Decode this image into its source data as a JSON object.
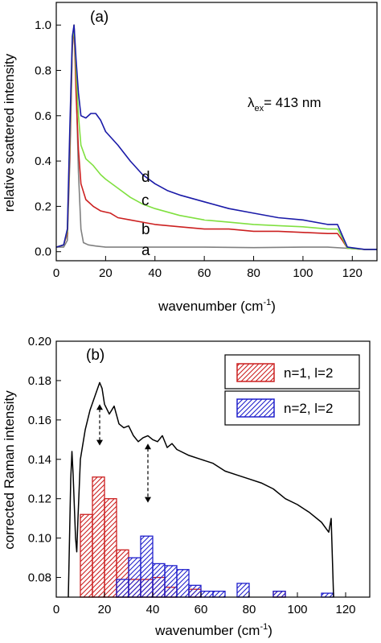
{
  "chart_data": [
    {
      "type": "line",
      "panel_label": "(a)",
      "annotation_main": "λ",
      "annotation_sub": "ex",
      "annotation_rest": "= 413 nm",
      "xlabel_main": "wavenumber (cm",
      "xlabel_sup": "-1",
      "xlabel_end": ")",
      "ylabel": "relative scattered intensity",
      "xlim": [
        0,
        130
      ],
      "ylim": [
        -0.04,
        1.1
      ],
      "xticks": [
        0,
        20,
        40,
        60,
        80,
        100,
        120
      ],
      "yticks": [
        0.0,
        0.2,
        0.4,
        0.6,
        0.8,
        1.0
      ],
      "ytick_labels": [
        "0.0",
        "0.2",
        "0.4",
        "0.6",
        "0.8",
        "1.0"
      ],
      "series": [
        {
          "name": "a",
          "color": "#808080",
          "points": [
            [
              0,
              0.02
            ],
            [
              3,
              0.02
            ],
            [
              4.5,
              0.05
            ],
            [
              5.5,
              0.4
            ],
            [
              6.5,
              0.9
            ],
            [
              7.2,
              1.0
            ],
            [
              8,
              0.75
            ],
            [
              9,
              0.35
            ],
            [
              10,
              0.1
            ],
            [
              11,
              0.04
            ],
            [
              13,
              0.03
            ],
            [
              16,
              0.025
            ],
            [
              20,
              0.02
            ],
            [
              30,
              0.02
            ],
            [
              40,
              0.02
            ],
            [
              60,
              0.02
            ],
            [
              80,
              0.018
            ],
            [
              100,
              0.02
            ],
            [
              110,
              0.02
            ],
            [
              118,
              0.015
            ],
            [
              125,
              0.01
            ],
            [
              130,
              0.01
            ]
          ]
        },
        {
          "name": "b",
          "color": "#cc2020",
          "points": [
            [
              0,
              0.02
            ],
            [
              3,
              0.03
            ],
            [
              4.5,
              0.08
            ],
            [
              5.5,
              0.45
            ],
            [
              6.5,
              0.9
            ],
            [
              7.2,
              1.0
            ],
            [
              8,
              0.7
            ],
            [
              9,
              0.45
            ],
            [
              10,
              0.3
            ],
            [
              12,
              0.23
            ],
            [
              15,
              0.2
            ],
            [
              18,
              0.18
            ],
            [
              22,
              0.17
            ],
            [
              25,
              0.15
            ],
            [
              30,
              0.14
            ],
            [
              35,
              0.13
            ],
            [
              40,
              0.12
            ],
            [
              50,
              0.11
            ],
            [
              60,
              0.1
            ],
            [
              70,
              0.1
            ],
            [
              80,
              0.09
            ],
            [
              90,
              0.09
            ],
            [
              100,
              0.085
            ],
            [
              110,
              0.08
            ],
            [
              114,
              0.08
            ],
            [
              116,
              0.05
            ],
            [
              118,
              0.015
            ],
            [
              125,
              0.01
            ],
            [
              130,
              0.01
            ]
          ]
        },
        {
          "name": "c",
          "color": "#80e040",
          "points": [
            [
              0,
              0.02
            ],
            [
              3,
              0.03
            ],
            [
              4.5,
              0.09
            ],
            [
              5.5,
              0.5
            ],
            [
              6.5,
              0.92
            ],
            [
              7.2,
              1.0
            ],
            [
              8,
              0.8
            ],
            [
              9,
              0.6
            ],
            [
              10,
              0.47
            ],
            [
              12,
              0.41
            ],
            [
              15,
              0.38
            ],
            [
              18,
              0.34
            ],
            [
              20,
              0.32
            ],
            [
              25,
              0.28
            ],
            [
              30,
              0.24
            ],
            [
              35,
              0.21
            ],
            [
              40,
              0.19
            ],
            [
              50,
              0.16
            ],
            [
              60,
              0.14
            ],
            [
              70,
              0.13
            ],
            [
              80,
              0.12
            ],
            [
              90,
              0.115
            ],
            [
              100,
              0.11
            ],
            [
              110,
              0.1
            ],
            [
              114,
              0.1
            ],
            [
              116,
              0.06
            ],
            [
              118,
              0.015
            ],
            [
              125,
              0.01
            ],
            [
              130,
              0.01
            ]
          ]
        },
        {
          "name": "d",
          "color": "#1a1aa8",
          "points": [
            [
              0,
              0.02
            ],
            [
              3,
              0.03
            ],
            [
              4.5,
              0.1
            ],
            [
              5.5,
              0.55
            ],
            [
              6.5,
              0.95
            ],
            [
              7.2,
              1.0
            ],
            [
              8,
              0.85
            ],
            [
              9,
              0.7
            ],
            [
              10,
              0.6
            ],
            [
              12,
              0.59
            ],
            [
              14,
              0.61
            ],
            [
              16,
              0.61
            ],
            [
              18,
              0.58
            ],
            [
              20,
              0.53
            ],
            [
              25,
              0.47
            ],
            [
              30,
              0.4
            ],
            [
              35,
              0.34
            ],
            [
              40,
              0.3
            ],
            [
              45,
              0.27
            ],
            [
              50,
              0.25
            ],
            [
              60,
              0.22
            ],
            [
              70,
              0.19
            ],
            [
              80,
              0.17
            ],
            [
              90,
              0.15
            ],
            [
              100,
              0.14
            ],
            [
              110,
              0.12
            ],
            [
              114,
              0.12
            ],
            [
              116,
              0.07
            ],
            [
              118,
              0.02
            ],
            [
              125,
              0.01
            ],
            [
              130,
              0.01
            ]
          ]
        }
      ]
    },
    {
      "type": "bar",
      "panel_label": "(b)",
      "xlabel_main": "wavenumber (cm",
      "xlabel_sup": "-1",
      "xlabel_end": ")",
      "ylabel": "corrected Raman intensity",
      "xlim": [
        0,
        130
      ],
      "ylim": [
        0.07,
        0.2
      ],
      "xticks": [
        0,
        20,
        40,
        60,
        80,
        100,
        120
      ],
      "yticks": [
        0.08,
        0.1,
        0.12,
        0.14,
        0.16,
        0.18,
        0.2
      ],
      "ytick_labels": [
        "0.08",
        "0.10",
        "0.12",
        "0.14",
        "0.16",
        "0.18",
        "0.20"
      ],
      "line_color": "#000000",
      "line_points": [
        [
          5,
          0.07
        ],
        [
          6,
          0.13
        ],
        [
          6.5,
          0.144
        ],
        [
          7,
          0.132
        ],
        [
          8,
          0.1
        ],
        [
          8.5,
          0.093
        ],
        [
          9,
          0.11
        ],
        [
          10,
          0.14
        ],
        [
          12,
          0.155
        ],
        [
          14,
          0.165
        ],
        [
          16,
          0.172
        ],
        [
          18,
          0.179
        ],
        [
          19,
          0.176
        ],
        [
          20,
          0.168
        ],
        [
          22,
          0.163
        ],
        [
          24,
          0.167
        ],
        [
          26,
          0.158
        ],
        [
          28,
          0.156
        ],
        [
          30,
          0.157
        ],
        [
          32,
          0.152
        ],
        [
          34,
          0.149
        ],
        [
          36,
          0.151
        ],
        [
          38,
          0.152
        ],
        [
          40,
          0.15
        ],
        [
          42,
          0.149
        ],
        [
          44,
          0.152
        ],
        [
          46,
          0.146
        ],
        [
          48,
          0.148
        ],
        [
          50,
          0.145
        ],
        [
          55,
          0.142
        ],
        [
          60,
          0.14
        ],
        [
          65,
          0.138
        ],
        [
          70,
          0.134
        ],
        [
          75,
          0.132
        ],
        [
          80,
          0.13
        ],
        [
          85,
          0.128
        ],
        [
          90,
          0.125
        ],
        [
          95,
          0.12
        ],
        [
          100,
          0.117
        ],
        [
          105,
          0.113
        ],
        [
          110,
          0.108
        ],
        [
          113,
          0.103
        ],
        [
          114,
          0.11
        ],
        [
          115,
          0.07
        ]
      ],
      "arrows": [
        [
          18,
          0.168,
          0.147
        ],
        [
          38,
          0.148,
          0.118
        ]
      ],
      "legend": [
        "n=1, l=2",
        "n=2, l=2"
      ],
      "legend_colors": [
        "#cc2020",
        "#2020cc"
      ],
      "bar_width": 5,
      "series": [
        {
          "name": "n=1, l=2",
          "color": "#cc2020",
          "bars": [
            [
              10,
              0.112
            ],
            [
              15,
              0.131
            ],
            [
              20,
              0.12
            ],
            [
              25,
              0.094
            ],
            [
              30,
              0.079
            ],
            [
              35,
              0.079
            ],
            [
              40,
              0.08
            ],
            [
              45,
              0.075
            ],
            [
              55,
              0.074
            ],
            [
              90,
              0.073
            ]
          ]
        },
        {
          "name": "n=2, l=2",
          "color": "#2020cc",
          "bars": [
            [
              25,
              0.079
            ],
            [
              30,
              0.09
            ],
            [
              35,
              0.101
            ],
            [
              40,
              0.087
            ],
            [
              45,
              0.086
            ],
            [
              50,
              0.084
            ],
            [
              55,
              0.076
            ],
            [
              60,
              0.073
            ],
            [
              65,
              0.073
            ],
            [
              75,
              0.077
            ],
            [
              90,
              0.073
            ],
            [
              110,
              0.072
            ]
          ]
        }
      ]
    }
  ]
}
